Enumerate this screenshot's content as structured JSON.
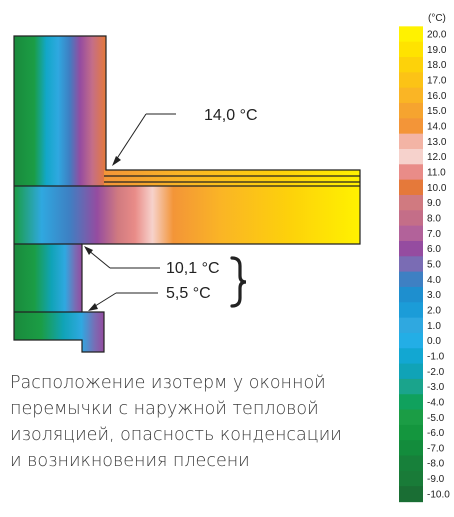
{
  "scale": {
    "unit": "(°C)",
    "labels": [
      "20.0",
      "19.0",
      "18.0",
      "17.0",
      "16.0",
      "15.0",
      "14.0",
      "13.0",
      "12.0",
      "11.0",
      "10.0",
      "9.0",
      "8.0",
      "7.0",
      "6.0",
      "5.0",
      "4.0",
      "3.0",
      "2.0",
      "1.0",
      "0.0",
      "-1.0",
      "-2.0",
      "-3.0",
      "-4.0",
      "-5.0",
      "-6.0",
      "-7.0",
      "-8.0",
      "-9.0",
      "-10.0"
    ],
    "colors": [
      "#fff200",
      "#ffe300",
      "#fdd20a",
      "#fcc316",
      "#fab525",
      "#f6a42f",
      "#f39538",
      "#f3b4a5",
      "#f6d2cc",
      "#e98c88",
      "#e5793a",
      "#d07a80",
      "#c46e88",
      "#b2629a",
      "#954ca0",
      "#7a6cb4",
      "#3e80c3",
      "#1e8fcf",
      "#1b9cd8",
      "#2fa8e0",
      "#23aee6",
      "#12a7d2",
      "#10a3b7",
      "#1aa48c",
      "#10a15d",
      "#1b9d45",
      "#14963e",
      "#138c3c",
      "#17803a",
      "#197b38",
      "#1a6e34"
    ]
  },
  "annotations": {
    "top": "14,0 °C",
    "mid": "10,1 °C",
    "low": "5,5 °C"
  },
  "caption": [
    "Расположение изотерм у оконной",
    "перемычки с наружной тепловой",
    "изоляцией, опасность конденсации",
    "и возникновения плесени"
  ]
}
